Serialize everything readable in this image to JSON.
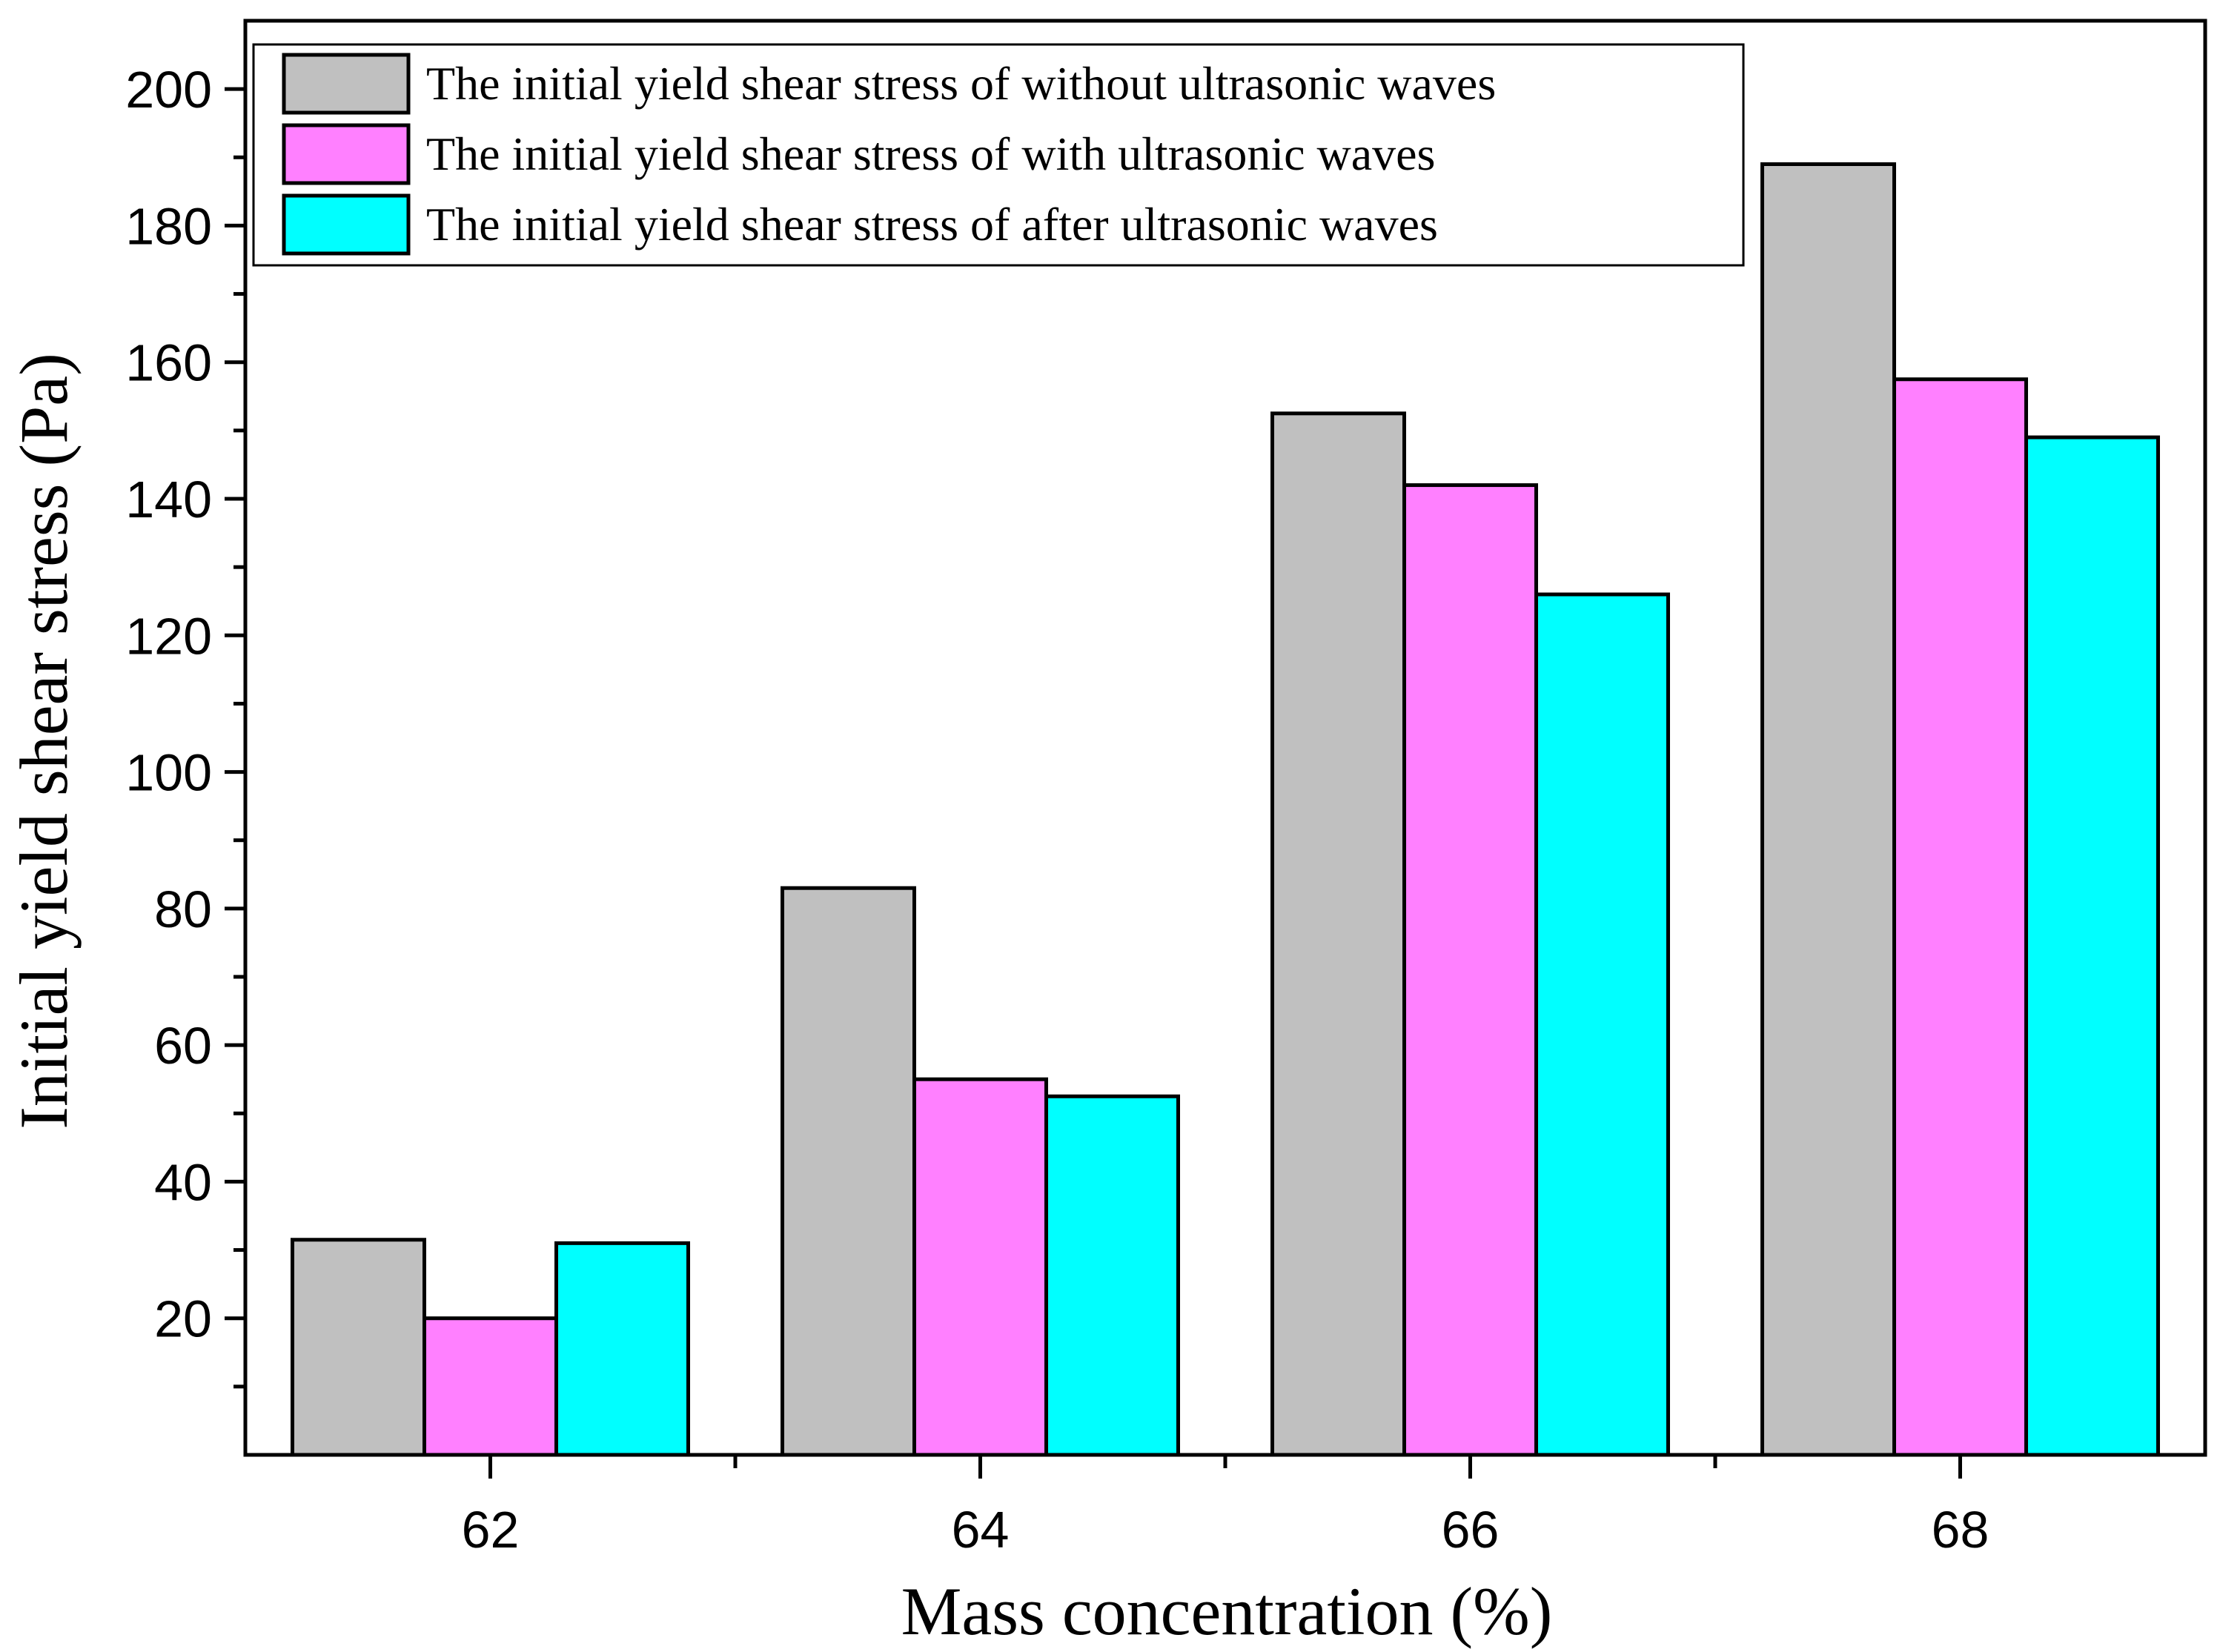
{
  "chart_data": {
    "type": "bar",
    "title": "",
    "xlabel": "Mass concentration (%)",
    "ylabel": "Initial yield shear stress (Pa)",
    "categories": [
      "62",
      "64",
      "66",
      "68"
    ],
    "ylim": [
      0,
      210
    ],
    "yticks": [
      20,
      40,
      60,
      80,
      100,
      120,
      140,
      160,
      180,
      200
    ],
    "grid": false,
    "legend_position": "top-left",
    "series": [
      {
        "name": "The initial yield shear stress of without ultrasonic waves",
        "color": "#c0c0c0",
        "values": [
          31.5,
          83,
          152.5,
          189
        ]
      },
      {
        "name": "The initial yield shear stress of with ultrasonic waves",
        "color": "#ff80ff",
        "values": [
          20,
          55,
          142,
          157.5
        ]
      },
      {
        "name": "The initial yield shear stress of after ultrasonic waves",
        "color": "#00ffff",
        "values": [
          31,
          52.5,
          126,
          149
        ]
      }
    ]
  }
}
